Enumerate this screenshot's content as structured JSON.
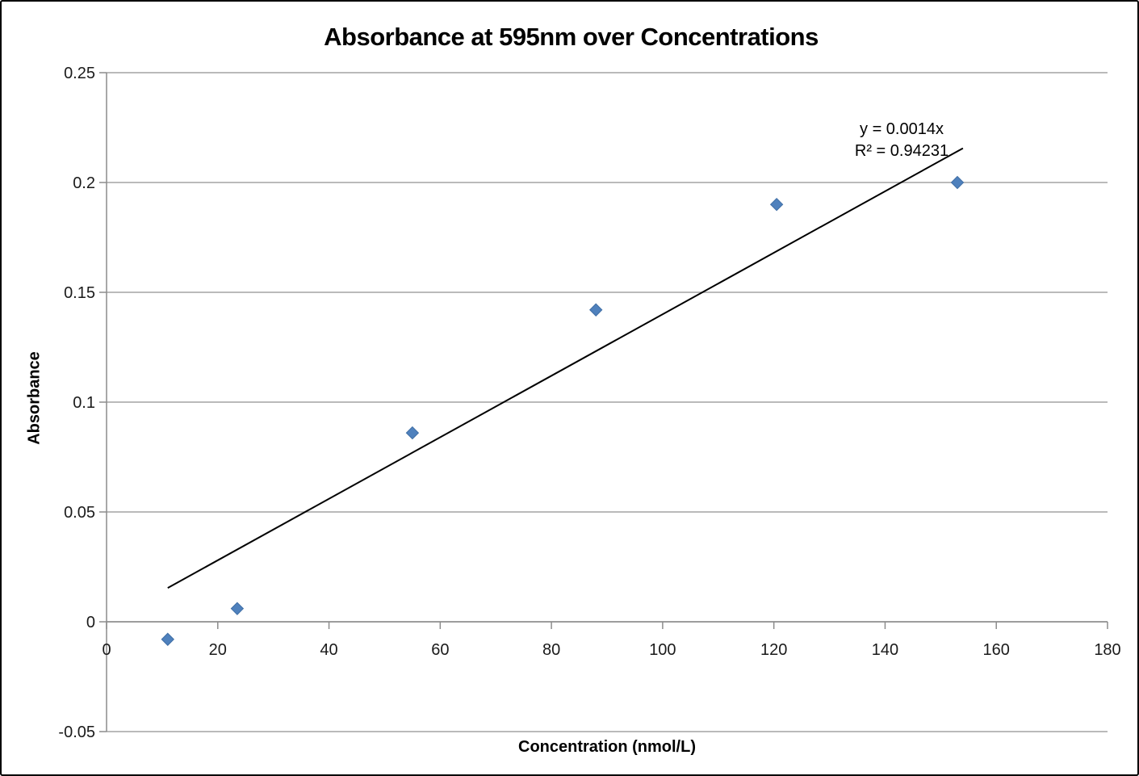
{
  "chart_data": {
    "type": "scatter",
    "title": "Absorbance at 595nm over Concentrations",
    "xlabel": "Concentration (nmol/L)",
    "ylabel": "Absorbance",
    "xlim": [
      0,
      180
    ],
    "ylim": [
      -0.05,
      0.25
    ],
    "x_ticks": [
      0,
      20,
      40,
      60,
      80,
      100,
      120,
      140,
      160,
      180
    ],
    "y_ticks": [
      -0.05,
      0,
      0.05,
      0.1,
      0.15,
      0.2,
      0.25
    ],
    "y_tick_labels": [
      "-0.05",
      "0",
      "0.05",
      "0.1",
      "0.15",
      "0.2",
      "0.25"
    ],
    "grid": "horizontal-only",
    "legend": "none",
    "series": [
      {
        "name": "Absorbance",
        "points": [
          {
            "x": 11,
            "y": -0.008
          },
          {
            "x": 23.5,
            "y": 0.006
          },
          {
            "x": 55,
            "y": 0.086
          },
          {
            "x": 88,
            "y": 0.142
          },
          {
            "x": 120.5,
            "y": 0.19
          },
          {
            "x": 153,
            "y": 0.2
          }
        ]
      }
    ],
    "trendline": {
      "equation_label": "y = 0.0014x",
      "r2_label": "R² = 0.94231",
      "slope": 0.0014,
      "intercept": 0,
      "x_start": 11,
      "x_end": 154
    },
    "marker": {
      "shape": "diamond",
      "fill": "#4f81bd",
      "edge": "#3f6ea5",
      "size": 15
    },
    "colors": {
      "gridline": "#a3a3a3",
      "axis": "#8c8c8c",
      "trendline": "#000000",
      "text": "#1a1a1a"
    }
  }
}
